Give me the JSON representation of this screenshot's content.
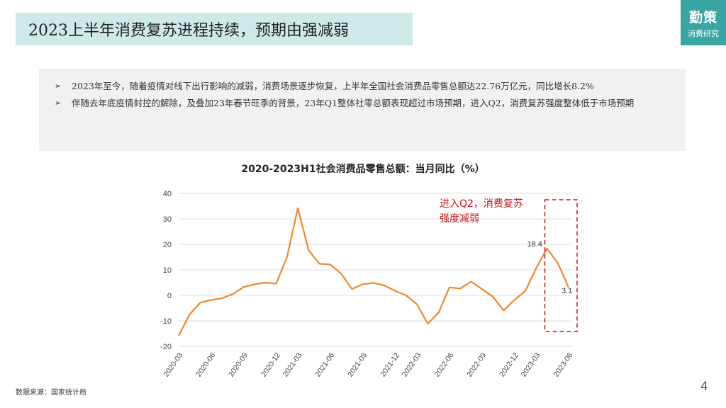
{
  "header": {
    "title": "2023上半年消费复苏进程持续，预期由强减弱"
  },
  "brand": {
    "name": "勤策",
    "subtitle": "消费研究"
  },
  "summary": {
    "bullets": [
      "2023年至今，随着疫情对线下出行影响的减弱，消费场景逐步恢复，上半年全国社会消费品零售总额达22.76万亿元，同比增长8.2%",
      "伴随去年底疫情封控的解除，及叠加23年春节旺季的背景，23年Q1整体社零总额表现超过市场预期，进入Q2，消费复苏强度整体低于市场预期"
    ]
  },
  "chart_data": {
    "type": "line",
    "title": "2020-2023H1社会消费品零售总额：当月同比（%）",
    "x": [
      "2020-03",
      "2020-04",
      "2020-05",
      "2020-06",
      "2020-07",
      "2020-08",
      "2020-09",
      "2020-10",
      "2020-11",
      "2020-12",
      "2021-01",
      "2021-03",
      "2021-04",
      "2021-05",
      "2021-06",
      "2021-07",
      "2021-08",
      "2021-09",
      "2021-10",
      "2021-11",
      "2021-12",
      "2022-01",
      "2022-03",
      "2022-04",
      "2022-05",
      "2022-06",
      "2022-07",
      "2022-08",
      "2022-09",
      "2022-10",
      "2022-11",
      "2022-12",
      "2023-01",
      "2023-03",
      "2023-04",
      "2023-05",
      "2023-06"
    ],
    "values": [
      -15.8,
      -7.5,
      -2.8,
      -1.8,
      -1.1,
      0.5,
      3.3,
      4.3,
      5.0,
      4.6,
      15.0,
      34.2,
      17.7,
      12.4,
      12.1,
      8.5,
      2.5,
      4.4,
      4.9,
      3.9,
      1.7,
      0.0,
      -3.5,
      -11.1,
      -6.7,
      3.1,
      2.7,
      5.4,
      2.5,
      -0.5,
      -5.9,
      -1.8,
      1.7,
      10.6,
      18.4,
      12.7,
      3.1
    ],
    "x_tick_labels": [
      "2020-03",
      "2020-06",
      "2020-09",
      "2020-12",
      "2021-03",
      "2021-06",
      "2021-09",
      "2021-12",
      "2022-03",
      "2022-06",
      "2022-09",
      "2022-12",
      "2023-03",
      "2023-06"
    ],
    "ylim": [
      -20,
      40
    ],
    "y_ticks": [
      -20,
      -10,
      0,
      10,
      20,
      30,
      40
    ],
    "data_labels": [
      {
        "x": "2023-04",
        "text": "18.4"
      },
      {
        "x": "2023-06",
        "text": "3.1"
      }
    ],
    "annotation": {
      "lines": [
        "进入Q2，消费复苏",
        "强度减弱"
      ],
      "highlight_range": [
        "2023-04",
        "2023-06"
      ]
    },
    "colors": {
      "line": "#f0882a",
      "annotation": "#c8161d",
      "grid": "#dddddd",
      "axis": "#bfbfbf"
    },
    "xlabel": "",
    "ylabel": "",
    "grid": true,
    "legend": "none"
  },
  "footer": {
    "source": "数据来源：国家统计局",
    "page": "4"
  }
}
